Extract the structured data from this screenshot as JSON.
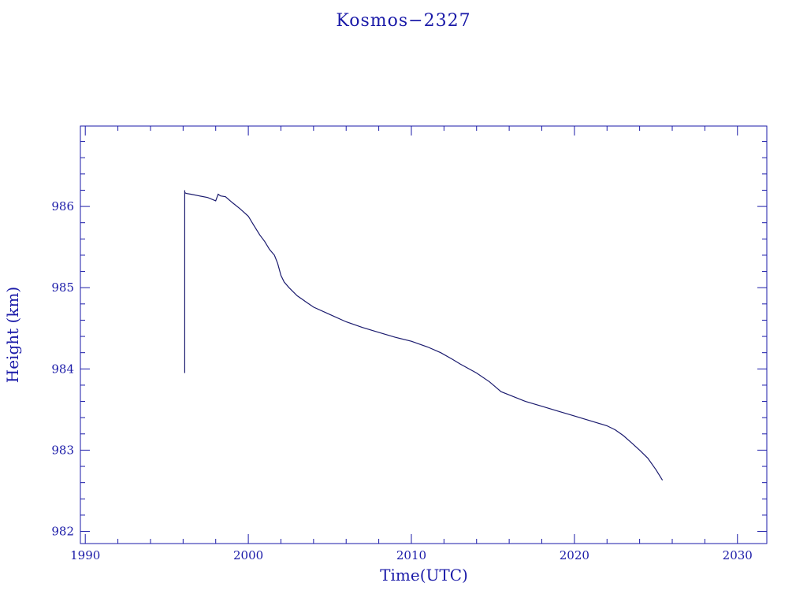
{
  "chart_data": {
    "type": "line",
    "title": "Kosmos−2327",
    "xlabel": "Time(UTC)",
    "ylabel": "Height (km)",
    "xlim": [
      1989.7,
      2031.8
    ],
    "ylim": [
      981.85,
      986.99
    ],
    "x_ticks": [
      1990,
      2000,
      2010,
      2020,
      2030
    ],
    "x_tick_labels": [
      "1990",
      "2000",
      "2010",
      "2020",
      "2030"
    ],
    "y_ticks": [
      982,
      983,
      984,
      985,
      986
    ],
    "y_tick_labels": [
      "982",
      "983",
      "984",
      "985",
      "986"
    ],
    "grid": false,
    "legend": "none",
    "colors": {
      "axes": "#1a1aa8",
      "line": "#1a1a6e",
      "text": "#1a1aa8"
    },
    "series": [
      {
        "x": [
          1996.1,
          1996.1,
          1996.1,
          1996.2,
          1996.5,
          1997.0,
          1997.5,
          1998.0,
          1998.15,
          1998.3,
          1998.6,
          1999.0,
          1999.5,
          2000.0,
          2000.3,
          2000.7,
          2001.0,
          2001.3,
          2001.6,
          2001.8,
          2002.0,
          2002.2,
          2002.5,
          2003.0,
          2003.5,
          2004.0,
          2005.0,
          2006.0,
          2007.0,
          2008.0,
          2009.0,
          2010.0,
          2011.0,
          2011.8,
          2012.5,
          2013.0,
          2014.0,
          2014.8,
          2015.5,
          2016.0,
          2017.0,
          2018.0,
          2019.0,
          2020.0,
          2021.0,
          2022.0,
          2022.5,
          2023.0,
          2023.5,
          2024.0,
          2024.5,
          2025.0,
          2025.4
        ],
        "y": [
          983.95,
          986.2,
          986.17,
          986.16,
          986.15,
          986.13,
          986.11,
          986.07,
          986.15,
          986.13,
          986.12,
          986.05,
          985.97,
          985.88,
          985.78,
          985.65,
          985.57,
          985.47,
          985.4,
          985.3,
          985.15,
          985.07,
          985.0,
          984.9,
          984.83,
          984.76,
          984.67,
          984.58,
          984.51,
          984.45,
          984.39,
          984.34,
          984.27,
          984.2,
          984.12,
          984.06,
          983.95,
          983.84,
          983.72,
          983.68,
          983.6,
          983.54,
          983.48,
          983.42,
          983.36,
          983.3,
          983.25,
          983.18,
          983.09,
          983.0,
          982.9,
          982.76,
          982.63
        ]
      }
    ]
  }
}
